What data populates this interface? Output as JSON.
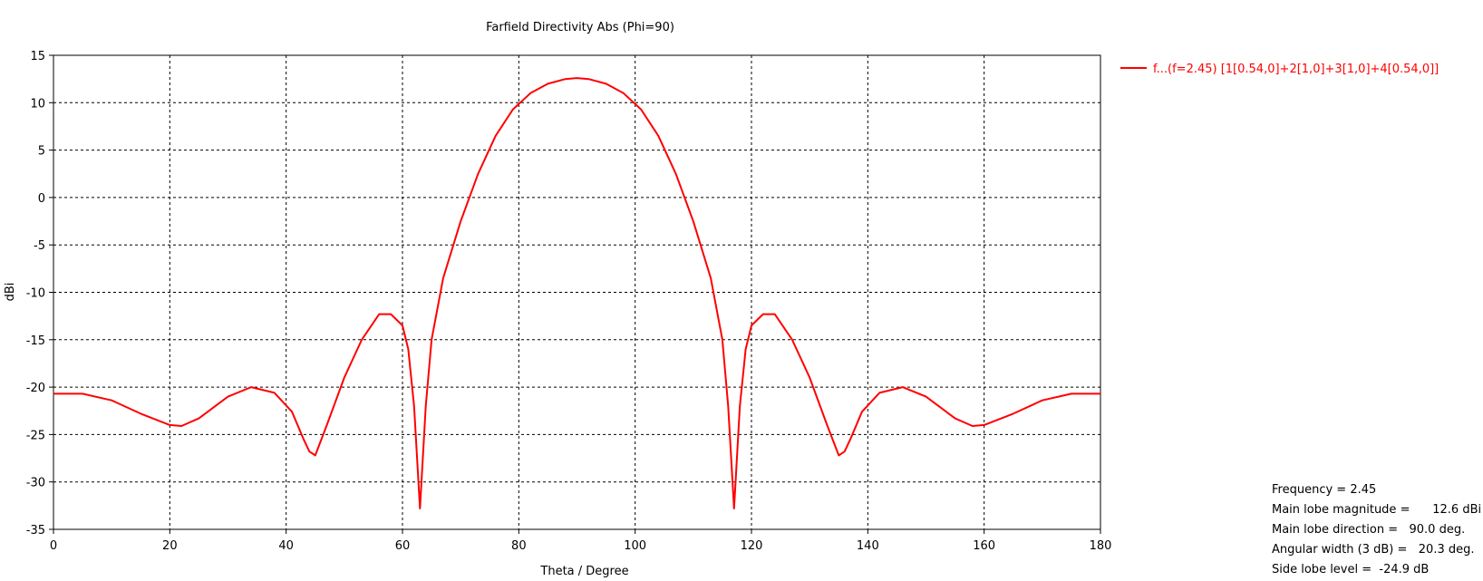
{
  "chart_data": {
    "type": "line",
    "title": "Farfield Directivity Abs (Phi=90)",
    "xlabel": "Theta / Degree",
    "ylabel": "dBi",
    "xlim": [
      0,
      180
    ],
    "ylim": [
      -35,
      15
    ],
    "xticks": [
      0,
      20,
      40,
      60,
      80,
      100,
      120,
      140,
      160,
      180
    ],
    "yticks": [
      15,
      10,
      5,
      0,
      -5,
      -10,
      -15,
      -20,
      -25,
      -30,
      -35
    ],
    "grid": true,
    "legend_position": "top-right, outside plot",
    "series": [
      {
        "name": "f...(f=2.45) [1[0.54,0]+2[1,0]+3[1,0]+4[0.54,0]]",
        "color": "#ff0000",
        "x": [
          0,
          5,
          10,
          15,
          20,
          22,
          25,
          30,
          34,
          38,
          41,
          43,
          44,
          45,
          47,
          50,
          53,
          56,
          58,
          60,
          61,
          62,
          63,
          64,
          65,
          67,
          70,
          73,
          76,
          79,
          82,
          85,
          88,
          90,
          92,
          95,
          98,
          101,
          104,
          107,
          110,
          113,
          115,
          116,
          117,
          118,
          119,
          120,
          122,
          124,
          127,
          130,
          133,
          135,
          136,
          137,
          139,
          142,
          146,
          150,
          155,
          158,
          160,
          165,
          170,
          175,
          180
        ],
        "values": [
          -20.7,
          -20.7,
          -21.4,
          -22.8,
          -24.0,
          -24.1,
          -23.3,
          -21.0,
          -20.0,
          -20.6,
          -22.6,
          -25.5,
          -26.8,
          -27.2,
          -24.0,
          -19.0,
          -15.0,
          -12.3,
          -12.3,
          -13.5,
          -16.0,
          -22.0,
          -32.8,
          -22.0,
          -15.0,
          -8.5,
          -2.5,
          2.5,
          6.5,
          9.3,
          11.0,
          12.0,
          12.5,
          12.6,
          12.5,
          12.0,
          11.0,
          9.3,
          6.5,
          2.5,
          -2.5,
          -8.5,
          -15.0,
          -22.0,
          -32.8,
          -22.0,
          -16.0,
          -13.5,
          -12.3,
          -12.3,
          -15.0,
          -19.0,
          -24.0,
          -27.2,
          -26.8,
          -25.5,
          -22.6,
          -20.6,
          -20.0,
          -21.0,
          -23.3,
          -24.1,
          -24.0,
          -22.8,
          -21.4,
          -20.7,
          -20.7
        ]
      }
    ]
  },
  "info": {
    "frequency": "Frequency = 2.45",
    "main_lobe_magnitude": "Main lobe magnitude =      12.6 dBi",
    "main_lobe_direction": "Main lobe direction =   90.0 deg.",
    "angular_width": "Angular width (3 dB) =   20.3 deg.",
    "side_lobe_level": "Side lobe level =  -24.9 dB"
  }
}
